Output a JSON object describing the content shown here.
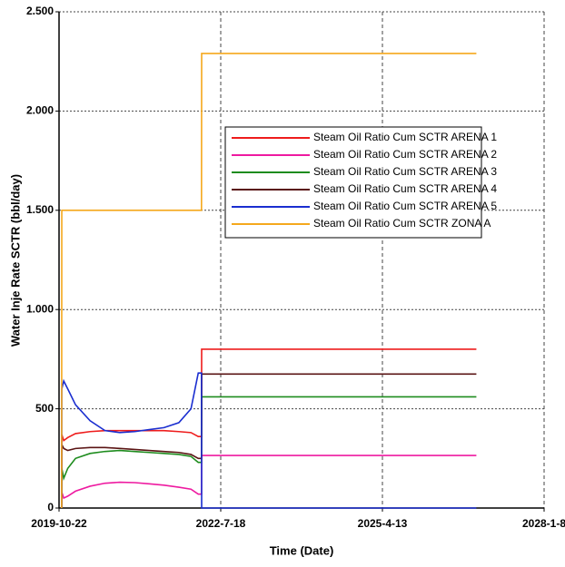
{
  "chart_data": {
    "type": "line",
    "x_label": "Time (Date)",
    "y_label": "Water Inje Rate SCTR (bbl/day)",
    "x": [
      "2019-11-07",
      "2019-11-08",
      "2019-11-20",
      "2019-12-15",
      "2020-02-01",
      "2020-05-01",
      "2020-08-01",
      "2020-11-01",
      "2021-02-01",
      "2021-05-01",
      "2021-08-01",
      "2021-11-01",
      "2022-01-15",
      "2022-03-01",
      "2022-03-21",
      "2022-03-22",
      "2026-11-15"
    ],
    "series": [
      {
        "name": "Steam Oil Ratio Cum SCTR ARENA 1",
        "color": "#ee1c1c",
        "values": [
          0,
          370,
          340,
          355,
          375,
          385,
          390,
          390,
          390,
          390,
          390,
          385,
          380,
          360,
          360,
          800,
          800
        ]
      },
      {
        "name": "Steam Oil Ratio Cum SCTR ARENA 2",
        "color": "#ee1aa0",
        "values": [
          0,
          80,
          50,
          60,
          85,
          110,
          125,
          130,
          128,
          122,
          115,
          105,
          95,
          70,
          70,
          265,
          265
        ]
      },
      {
        "name": "Steam Oil Ratio Cum SCTR ARENA 3",
        "color": "#1e8c1e",
        "values": [
          0,
          200,
          150,
          200,
          250,
          275,
          285,
          290,
          285,
          280,
          275,
          270,
          260,
          230,
          230,
          560,
          560
        ]
      },
      {
        "name": "Steam Oil Ratio Cum SCTR ARENA 4",
        "color": "#5a1414",
        "values": [
          0,
          320,
          300,
          290,
          300,
          305,
          305,
          300,
          295,
          290,
          285,
          280,
          270,
          250,
          250,
          675,
          675
        ]
      },
      {
        "name": "Steam Oil Ratio Cum SCTR ARENA 5",
        "color": "#1a2ed0",
        "values": [
          0,
          600,
          640,
          600,
          520,
          440,
          390,
          380,
          385,
          395,
          405,
          430,
          500,
          680,
          680,
          0,
          0
        ]
      },
      {
        "name": "Steam Oil Ratio Cum SCTR ZONA A",
        "color": "#f5a81c",
        "values": [
          0,
          1500,
          1500,
          1500,
          1500,
          1500,
          1500,
          1500,
          1500,
          1500,
          1500,
          1500,
          1500,
          1500,
          1500,
          2290,
          2290
        ]
      }
    ],
    "xlim": [
      "2019-10-22",
      "2028-1-8"
    ],
    "xticks": [
      "2019-10-22",
      "2022-7-18",
      "2025-4-13",
      "2028-1-8"
    ],
    "ylim": [
      0,
      2500
    ],
    "yticks": [
      0,
      500,
      {
        "value": 1000,
        "label": "1.000"
      },
      {
        "value": 1500,
        "label": "1.500"
      },
      {
        "value": 2000,
        "label": "2.000"
      },
      {
        "value": 2500,
        "label": "2.500"
      }
    ],
    "grid": true,
    "legend": "upper-right"
  }
}
